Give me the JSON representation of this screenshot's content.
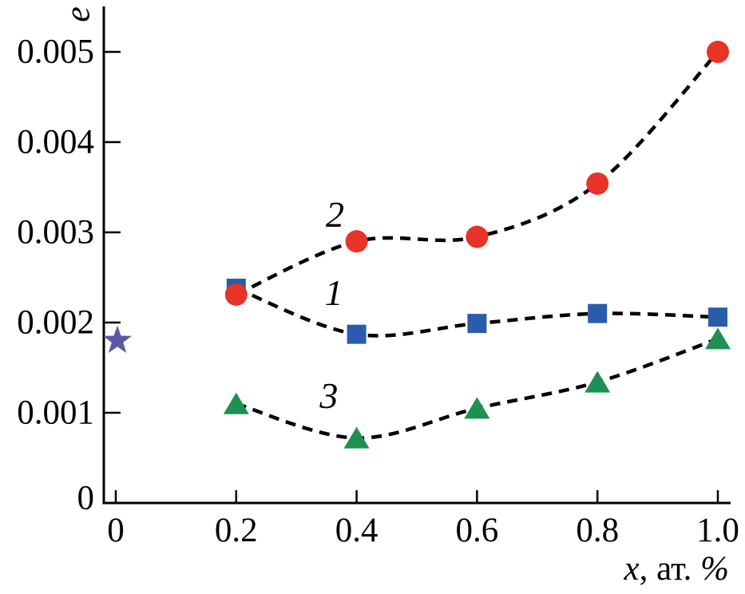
{
  "figure": {
    "background": "#ffffff",
    "axis_color": "#000000",
    "line_color": "#000000"
  },
  "chart_data": {
    "type": "scatter",
    "title": "",
    "xlabel": "x, ат. %",
    "xlabel_parts": [
      {
        "text": "x",
        "italic": true
      },
      {
        "text": ", ат. ",
        "italic": false
      },
      {
        "text": "%",
        "italic": true
      }
    ],
    "ylabel": "e",
    "xlim": [
      0,
      1.0
    ],
    "ylim": [
      0,
      0.005
    ],
    "x_tick_values": [
      0,
      0.2,
      0.4,
      0.6,
      0.8,
      1.0
    ],
    "x_tick_labels": [
      "0",
      "0.2",
      "0.4",
      "0.6",
      "0.8",
      "1.0"
    ],
    "y_tick_values": [
      0,
      0.001,
      0.002,
      0.003,
      0.004,
      0.005
    ],
    "y_tick_labels": [
      "0",
      "0.001",
      "0.002",
      "0.003",
      "0.004",
      "0.005"
    ],
    "grid": false,
    "legend": "none",
    "line_style": "dashed",
    "series": [
      {
        "name": "1",
        "marker": "square",
        "color": "#2b5cab",
        "x": [
          0.2,
          0.4,
          0.6,
          0.8,
          1.0
        ],
        "y": [
          0.00238,
          0.00187,
          0.00199,
          0.0021,
          0.00206
        ],
        "label": {
          "text": "1",
          "x": 0.362,
          "y": 0.00233
        }
      },
      {
        "name": "2",
        "marker": "circle",
        "color": "#e73328",
        "x": [
          0.2,
          0.4,
          0.6,
          0.8,
          1.0
        ],
        "y": [
          0.00231,
          0.0029,
          0.00295,
          0.00354,
          0.005
        ],
        "label": {
          "text": "2",
          "x": 0.364,
          "y": 0.0032
        }
      },
      {
        "name": "3",
        "marker": "triangle",
        "color": "#1e9152",
        "x": [
          0.2,
          0.4,
          0.6,
          0.8,
          1.0
        ],
        "y": [
          0.0011,
          0.00072,
          0.00105,
          0.00134,
          0.00182
        ],
        "label": {
          "text": "3",
          "x": 0.354,
          "y": 0.00119
        }
      }
    ],
    "extra_points": [
      {
        "name": "reference-star",
        "marker": "star",
        "color": "#5b57a8",
        "x": 0,
        "y": 0.0018
      }
    ]
  }
}
